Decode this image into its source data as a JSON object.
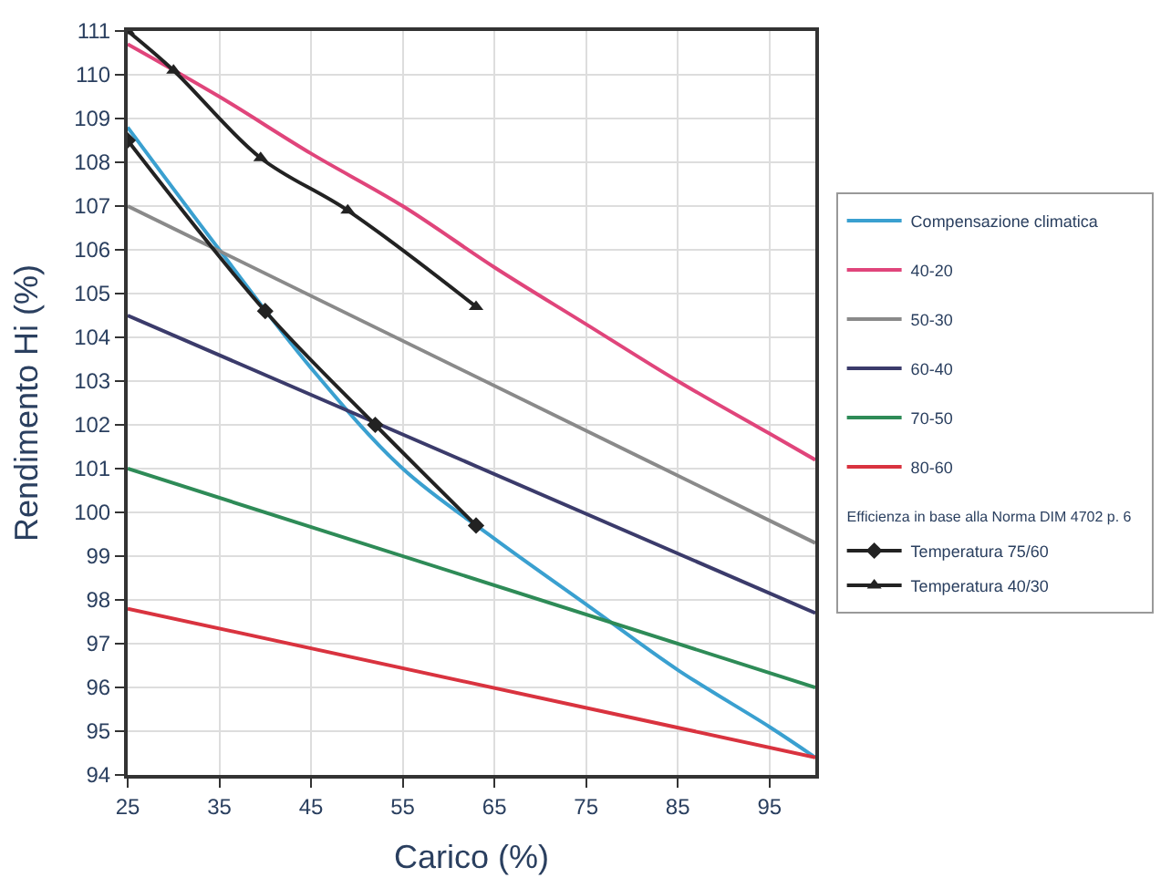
{
  "chart_data": {
    "type": "line",
    "xlabel": "Carico (%)",
    "ylabel": "Rendimento Hi (%)",
    "xlim": [
      25,
      100
    ],
    "xticks": [
      25,
      35,
      45,
      55,
      65,
      75,
      85,
      95
    ],
    "ylim": [
      94,
      111
    ],
    "yticks": [
      94,
      95,
      96,
      97,
      98,
      99,
      100,
      101,
      102,
      103,
      104,
      105,
      106,
      107,
      108,
      109,
      110,
      111
    ],
    "grid": true,
    "legend": "right",
    "marker": "none",
    "line_style": "solid",
    "annotations": [
      "Efficienza in base alla Norma DIM 4702 p. 6"
    ],
    "series": [
      {
        "name": "Compensazione climatica",
        "color": "#3aa0d0",
        "x": [
          25,
          35,
          45,
          55,
          65,
          75,
          85,
          95,
          100
        ],
        "values": [
          108.8,
          106.0,
          103.3,
          101.0,
          99.4,
          97.9,
          96.4,
          95.1,
          94.4
        ]
      },
      {
        "name": "40-20",
        "color": "#e0457b",
        "x": [
          25,
          35,
          45,
          55,
          65,
          75,
          85,
          95,
          100
        ],
        "values": [
          110.7,
          109.5,
          108.2,
          107.0,
          105.6,
          104.3,
          103.0,
          101.8,
          101.2
        ]
      },
      {
        "name": "50-30",
        "color": "#8a8a8a",
        "x": [
          25,
          100
        ],
        "values": [
          107.0,
          99.3
        ]
      },
      {
        "name": "60-40",
        "color": "#3b3b6b",
        "x": [
          25,
          100
        ],
        "values": [
          104.5,
          97.7
        ]
      },
      {
        "name": "70-50",
        "color": "#2e8b57",
        "x": [
          25,
          100
        ],
        "values": [
          101.0,
          96.0
        ]
      },
      {
        "name": "80-60",
        "color": "#d9333f",
        "x": [
          25,
          100
        ],
        "values": [
          97.8,
          94.4
        ]
      },
      {
        "name": "Temperatura 75/60",
        "color": "#222222",
        "marker": "diamond",
        "x": [
          25,
          40,
          52,
          63
        ],
        "values": [
          108.5,
          104.6,
          102.0,
          99.7
        ]
      },
      {
        "name": "Temperatura 40/30",
        "color": "#222222",
        "marker": "triangle",
        "x": [
          25,
          30,
          39.5,
          49,
          63
        ],
        "values": [
          111,
          110.1,
          108.1,
          106.9,
          104.7
        ]
      }
    ]
  }
}
